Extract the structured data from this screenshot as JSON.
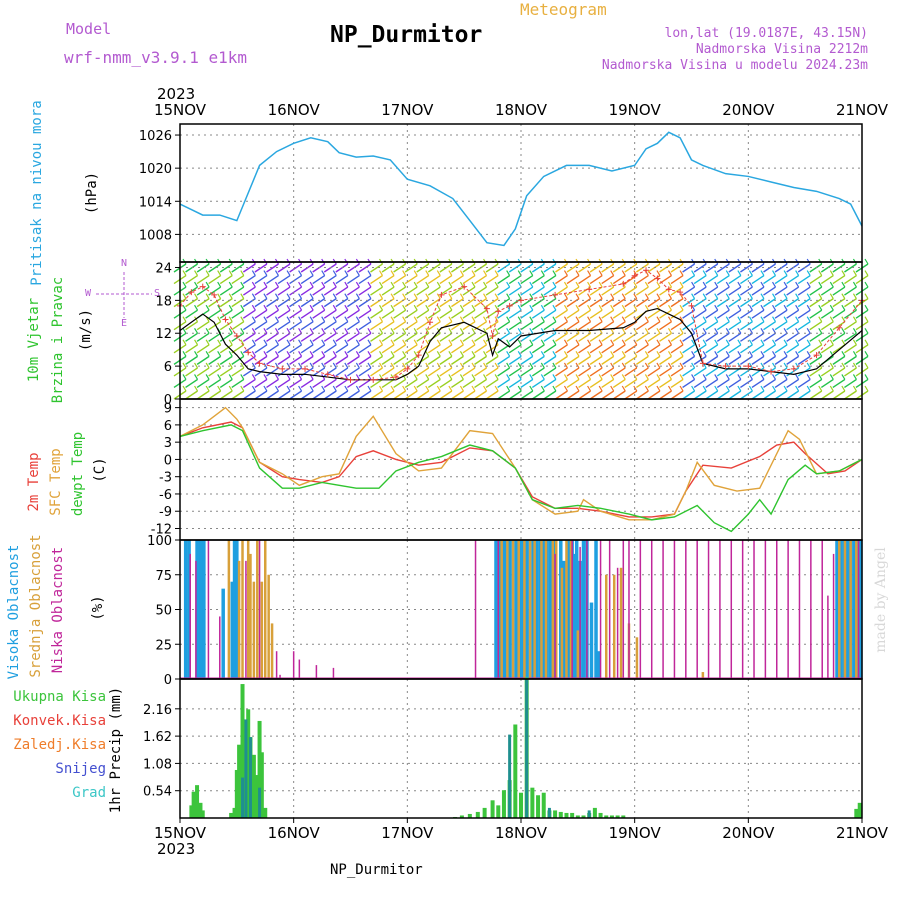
{
  "header": {
    "model_label": "Model",
    "model_name": "wrf-nmm_v3.9.1  e1km",
    "title": "NP_Durmitor",
    "product": "Meteogram",
    "location": "lon,lat (19.0187E, 43.15N)",
    "elevation": "Nadmorska Visina 2212m",
    "model_elevation": "Nadmorska Visina u modelu 2024.23m",
    "footer_station": "NP_Durmitor",
    "credit": "made by Angel"
  },
  "colors": {
    "pressure": "#2aa7e0",
    "temp2m": "#e8413a",
    "sfc_temp": "#e0a33a",
    "dewpt": "#2fc42f",
    "high_cloud": "#1f9fe0",
    "mid_cloud": "#d8a03a",
    "low_cloud": "#c0269a",
    "total_precip": "#3cc43c",
    "conv_precip": "#e8413a",
    "frozen_precip": "#ef7d2a",
    "snow": "#4450d0",
    "graupel": "#3cc7c7",
    "wind_speed": "#000000",
    "wind_gust": "#e8413a",
    "purple_text": "#b35ad0",
    "orange_text": "#e8b040"
  },
  "chart_data": [
    {
      "type": "line",
      "panel": "pressure",
      "ylabel_lines": [
        "Pritisak na nivou mora",
        "(hPa)"
      ],
      "yticks": [
        "1008",
        "1014",
        "1020",
        "1026"
      ],
      "ylim": [
        1003,
        1028
      ],
      "x_start_label": "2023",
      "x_ticks": [
        "15NOV",
        "16NOV",
        "17NOV",
        "18NOV",
        "19NOV",
        "20NOV",
        "21NOV"
      ],
      "x_range_days": [
        0,
        6
      ],
      "series": [
        {
          "name": "Pritisak na nivou mora",
          "x": [
            0,
            0.1,
            0.2,
            0.35,
            0.5,
            0.6,
            0.7,
            0.85,
            1.0,
            1.15,
            1.3,
            1.4,
            1.55,
            1.7,
            1.85,
            2.0,
            2.2,
            2.4,
            2.55,
            2.7,
            2.85,
            2.95,
            3.05,
            3.2,
            3.4,
            3.6,
            3.8,
            4.0,
            4.1,
            4.2,
            4.3,
            4.4,
            4.5,
            4.6,
            4.8,
            5.0,
            5.2,
            5.4,
            5.6,
            5.8,
            5.9,
            6.0
          ],
          "values": [
            1013.5,
            1012.5,
            1011.5,
            1011.5,
            1010.5,
            1015.5,
            1020.5,
            1023,
            1024.5,
            1025.5,
            1024.8,
            1022.8,
            1022.0,
            1022.2,
            1021.5,
            1018.0,
            1016.8,
            1014.5,
            1010.5,
            1006.5,
            1006.0,
            1009.0,
            1015.0,
            1018.5,
            1020.5,
            1020.5,
            1019.5,
            1020.5,
            1023.5,
            1024.5,
            1026.5,
            1025.5,
            1021.5,
            1020.5,
            1019.0,
            1018.5,
            1017.5,
            1016.5,
            1015.8,
            1014.5,
            1013.5,
            1009.5
          ]
        }
      ]
    },
    {
      "type": "line",
      "panel": "wind",
      "ylabel_lines": [
        "10m Vjetar",
        "Brzina i Pravac",
        "(m/s)"
      ],
      "compass_labels": [
        "N",
        "E",
        "S",
        "W"
      ],
      "yticks": [
        "0",
        "6",
        "12",
        "18",
        "24"
      ],
      "ylim": [
        0,
        25
      ],
      "series": [
        {
          "name": "speed",
          "x": [
            0,
            0.1,
            0.2,
            0.3,
            0.4,
            0.5,
            0.6,
            0.7,
            0.9,
            1.1,
            1.3,
            1.5,
            1.7,
            1.9,
            2.0,
            2.1,
            2.2,
            2.3,
            2.5,
            2.7,
            2.75,
            2.8,
            2.9,
            3.0,
            3.3,
            3.6,
            3.9,
            4.0,
            4.1,
            4.2,
            4.3,
            4.4,
            4.5,
            4.6,
            4.8,
            5.0,
            5.2,
            5.4,
            5.6,
            5.8,
            6.0
          ],
          "values": [
            12.5,
            14.0,
            15.5,
            14.0,
            10.0,
            8.0,
            5.5,
            5.0,
            4.5,
            4.5,
            4.0,
            3.5,
            3.5,
            3.5,
            4.5,
            6.0,
            10.5,
            13.0,
            14.0,
            12.0,
            8.0,
            11.0,
            9.5,
            11.5,
            12.5,
            12.5,
            13.0,
            14.0,
            16.0,
            16.5,
            15.5,
            14.5,
            12.0,
            6.5,
            5.5,
            5.5,
            5.0,
            4.5,
            5.5,
            9.0,
            12.5
          ]
        },
        {
          "name": "gust",
          "x": [
            0,
            0.1,
            0.2,
            0.3,
            0.4,
            0.5,
            0.6,
            0.7,
            0.9,
            1.1,
            1.3,
            1.5,
            1.7,
            1.9,
            2.0,
            2.1,
            2.2,
            2.3,
            2.5,
            2.7,
            2.75,
            2.8,
            2.9,
            3.0,
            3.3,
            3.6,
            3.9,
            4.0,
            4.1,
            4.2,
            4.3,
            4.4,
            4.5,
            4.6,
            4.8,
            5.0,
            5.2,
            5.4,
            5.6,
            5.8,
            6.0
          ],
          "values": [
            17.0,
            19.5,
            20.5,
            19.0,
            14.5,
            11.5,
            8.5,
            6.5,
            5.5,
            5.5,
            4.5,
            3.5,
            3.5,
            4.0,
            5.5,
            8.0,
            14.0,
            19.0,
            20.5,
            16.5,
            11.5,
            16.0,
            17.0,
            18.0,
            19.0,
            20.0,
            21.0,
            22.5,
            23.5,
            22.0,
            20.0,
            19.5,
            17.0,
            6.5,
            6.0,
            6.0,
            5.0,
            5.5,
            8.0,
            13.0,
            18.0
          ]
        }
      ]
    },
    {
      "type": "line",
      "panel": "temperature",
      "ylabel_lines": [
        "2m Temp",
        "SFC Temp",
        "dewpt Temp",
        "(C)"
      ],
      "yticks": [
        "-12",
        "-9",
        "-6",
        "-3",
        "0",
        "3",
        "6",
        "9"
      ],
      "ylim": [
        -14,
        10.5
      ],
      "series": [
        {
          "name": "2m Temp",
          "x": [
            0,
            0.2,
            0.45,
            0.55,
            0.7,
            0.9,
            1.05,
            1.25,
            1.4,
            1.55,
            1.7,
            1.9,
            2.1,
            2.3,
            2.55,
            2.75,
            2.95,
            3.1,
            3.3,
            3.5,
            3.7,
            3.95,
            4.15,
            4.35,
            4.45,
            4.6,
            4.85,
            5.1,
            5.25,
            5.4,
            5.5,
            5.7,
            5.85,
            6.0
          ],
          "values": [
            4.0,
            5.5,
            6.5,
            5.5,
            -0.5,
            -3.0,
            -3.5,
            -4.0,
            -3.0,
            0.5,
            1.5,
            0.0,
            -1.0,
            -0.5,
            2.0,
            1.5,
            -1.5,
            -6.5,
            -8.5,
            -8.5,
            -9.0,
            -10.0,
            -10.0,
            -9.5,
            -5.5,
            -1.0,
            -1.5,
            0.5,
            2.5,
            3.0,
            1.0,
            -2.5,
            -2.0,
            0.0
          ]
        },
        {
          "name": "SFC Temp",
          "x": [
            0,
            0.2,
            0.4,
            0.5,
            0.55,
            0.7,
            0.9,
            1.05,
            1.25,
            1.4,
            1.55,
            1.7,
            1.9,
            2.1,
            2.3,
            2.55,
            2.75,
            2.95,
            3.1,
            3.3,
            3.5,
            3.55,
            3.7,
            3.95,
            4.15,
            4.35,
            4.45,
            4.55,
            4.7,
            4.9,
            5.1,
            5.35,
            5.45,
            5.6,
            5.8,
            6.0
          ],
          "values": [
            4.0,
            6.0,
            9.0,
            7.0,
            5.5,
            -0.5,
            -2.5,
            -4.5,
            -3.0,
            -2.5,
            4.0,
            7.5,
            1.0,
            -2.0,
            -1.5,
            5.0,
            4.5,
            -1.5,
            -7.0,
            -9.5,
            -9.0,
            -7.0,
            -9.0,
            -10.5,
            -10.5,
            -9.5,
            -5.5,
            -0.5,
            -4.5,
            -5.5,
            -5.0,
            5.0,
            3.5,
            -2.5,
            -2.0,
            0.0
          ]
        },
        {
          "name": "dewpt Temp",
          "x": [
            0,
            0.2,
            0.45,
            0.55,
            0.7,
            0.9,
            1.05,
            1.25,
            1.4,
            1.55,
            1.75,
            1.9,
            2.1,
            2.3,
            2.55,
            2.75,
            2.95,
            3.1,
            3.3,
            3.5,
            3.7,
            3.95,
            4.15,
            4.35,
            4.55,
            4.7,
            4.85,
            5.0,
            5.1,
            5.2,
            5.35,
            5.5,
            5.6,
            5.8,
            6.0
          ],
          "values": [
            4.0,
            5.0,
            6.0,
            5.0,
            -1.5,
            -5.0,
            -5.0,
            -4.0,
            -4.5,
            -5.0,
            -5.0,
            -2.0,
            -0.5,
            0.5,
            2.5,
            1.5,
            -1.5,
            -7.0,
            -8.5,
            -8.0,
            -8.5,
            -9.5,
            -10.5,
            -10.0,
            -8.0,
            -11.0,
            -12.5,
            -9.5,
            -7.0,
            -9.5,
            -3.5,
            -1.0,
            -2.5,
            -2.0,
            0.0
          ]
        }
      ]
    },
    {
      "type": "bar",
      "panel": "cloud",
      "ylabel_lines": [
        "Visoka Oblacnost",
        "Srednja Oblacnost",
        "Niska Oblacnost",
        "(%)"
      ],
      "yticks": [
        "0",
        "25",
        "50",
        "75",
        "100"
      ],
      "ylim": [
        0,
        100
      ],
      "series": [
        {
          "name": "Visoka Oblacnost",
          "x": [
            0.05,
            0.08,
            0.15,
            0.17,
            0.19,
            0.21,
            0.38,
            0.46,
            0.48,
            0.5,
            2.78,
            2.81,
            2.84,
            2.87,
            2.9,
            2.93,
            2.96,
            2.99,
            3.02,
            3.05,
            3.08,
            3.11,
            3.14,
            3.17,
            3.2,
            3.23,
            3.26,
            3.3,
            3.35,
            3.38,
            3.42,
            3.45,
            3.47,
            3.49,
            3.52,
            3.55,
            3.58,
            3.62,
            3.66,
            3.68,
            5.78,
            5.81,
            5.84,
            5.87,
            5.9,
            5.93,
            5.96,
            5.99
          ],
          "values": [
            100,
            100,
            100,
            100,
            100,
            100,
            65,
            70,
            100,
            100,
            100,
            100,
            100,
            100,
            100,
            100,
            100,
            100,
            100,
            100,
            100,
            100,
            100,
            100,
            100,
            100,
            100,
            100,
            100,
            85,
            100,
            100,
            90,
            100,
            85,
            100,
            100,
            55,
            100,
            20,
            100,
            100,
            100,
            100,
            100,
            100,
            100,
            100
          ]
        },
        {
          "name": "Srednja Oblacnost",
          "x": [
            0.43,
            0.52,
            0.55,
            0.6,
            0.62,
            0.65,
            0.68,
            0.72,
            0.75,
            0.78,
            0.81,
            2.83,
            2.88,
            2.93,
            2.98,
            3.03,
            3.08,
            3.12,
            3.18,
            3.22,
            3.28,
            3.31,
            3.36,
            3.4,
            3.44,
            3.5,
            3.75,
            3.82,
            3.88,
            3.95,
            4.02,
            4.6,
            5.8,
            5.85,
            5.9,
            5.95
          ],
          "values": [
            100,
            85,
            100,
            100,
            90,
            70,
            100,
            70,
            100,
            75,
            40,
            100,
            100,
            100,
            100,
            100,
            100,
            100,
            100,
            100,
            100,
            100,
            80,
            100,
            100,
            35,
            75,
            75,
            80,
            40,
            30,
            5,
            100,
            100,
            100,
            100
          ]
        },
        {
          "name": "Niska Oblacnost",
          "x": [
            0.09,
            0.14,
            0.25,
            0.35,
            0.58,
            0.7,
            0.85,
            0.88,
            1.0,
            1.05,
            1.2,
            1.35,
            2.6,
            2.8,
            3.3,
            3.45,
            3.52,
            3.58,
            3.7,
            3.78,
            3.85,
            3.9,
            3.95,
            4.05,
            4.15,
            4.25,
            4.35,
            4.45,
            4.55,
            4.65,
            4.75,
            4.85,
            4.95,
            5.05,
            5.15,
            5.25,
            5.35,
            5.45,
            5.55,
            5.65,
            5.7,
            5.75,
            5.97
          ],
          "values": [
            90,
            85,
            100,
            45,
            85,
            100,
            20,
            3,
            20,
            14,
            10,
            8,
            100,
            100,
            90,
            100,
            95,
            100,
            100,
            100,
            80,
            100,
            100,
            100,
            100,
            100,
            100,
            100,
            100,
            100,
            100,
            100,
            100,
            100,
            100,
            100,
            100,
            100,
            100,
            100,
            60,
            90,
            100
          ]
        }
      ]
    },
    {
      "type": "bar",
      "panel": "precip",
      "ylabel_lines": [
        "1hr Precip (mm)"
      ],
      "legend": [
        "Ukupna Kisa",
        "Konvek.Kisa",
        "Zaledj.Kisa",
        "Snijeg",
        "Grad"
      ],
      "yticks": [
        "0.54",
        "1.08",
        "1.62",
        "2.16"
      ],
      "ylim": [
        0,
        2.75
      ],
      "series": [
        {
          "name": "Ukupna Kisa",
          "x": [
            0.1,
            0.12,
            0.15,
            0.18,
            0.2,
            0.45,
            0.48,
            0.5,
            0.52,
            0.55,
            0.58,
            0.6,
            0.62,
            0.65,
            0.68,
            0.7,
            0.72,
            0.75,
            2.42,
            2.48,
            2.55,
            2.62,
            2.68,
            2.75,
            2.8,
            2.85,
            2.9,
            2.95,
            3.0,
            3.05,
            3.1,
            3.15,
            3.2,
            3.25,
            3.3,
            3.35,
            3.4,
            3.45,
            3.5,
            3.55,
            3.6,
            3.65,
            3.7,
            3.75,
            3.8,
            3.85,
            3.9,
            5.95,
            5.98
          ],
          "values": [
            0.25,
            0.52,
            0.65,
            0.3,
            0.15,
            0.1,
            0.2,
            0.95,
            1.45,
            2.65,
            1.75,
            2.15,
            1.6,
            1.25,
            0.85,
            1.92,
            1.3,
            0.2,
            0.02,
            0.05,
            0.08,
            0.12,
            0.2,
            0.35,
            0.25,
            0.55,
            0.75,
            1.85,
            0.5,
            2.78,
            0.6,
            0.45,
            0.5,
            0.15,
            0.15,
            0.12,
            0.1,
            0.1,
            0.05,
            0.05,
            0.1,
            0.2,
            0.1,
            0.05,
            0.05,
            0.05,
            0.05,
            0.18,
            0.3
          ]
        },
        {
          "name": "Snijeg",
          "x": [
            0.55,
            0.58,
            0.62,
            0.7,
            2.9,
            3.05,
            3.25,
            3.6
          ],
          "values": [
            0.8,
            1.95,
            1.6,
            0.6,
            1.65,
            2.75,
            0.2,
            0.15
          ]
        }
      ]
    }
  ]
}
